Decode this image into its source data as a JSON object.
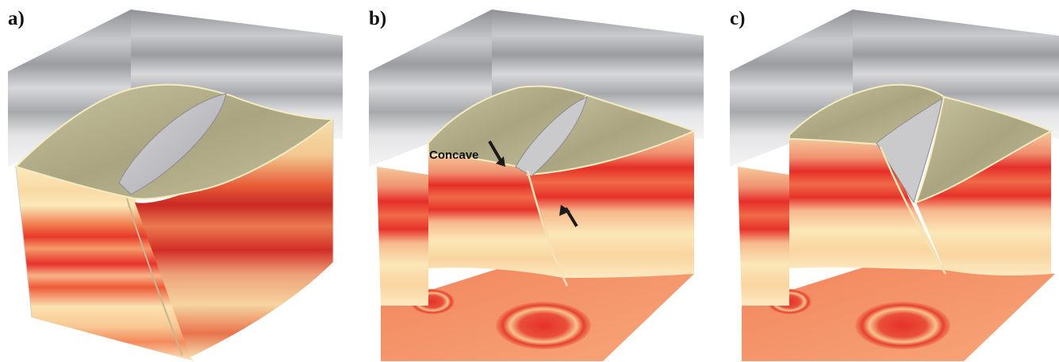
{
  "panels": [
    {
      "label": "a)"
    },
    {
      "label": "b)",
      "annotation": "Concave"
    },
    {
      "label": "c)"
    }
  ],
  "colors": {
    "seismic_gray_dark": "#8a8c90",
    "seismic_gray_light": "#e8e8ea",
    "horizon_surface": "#b9b48f",
    "layer_red": "#e8302a",
    "layer_orange": "#f07a4c",
    "layer_cream": "#fbe6b6",
    "fault_surface": "#c9c9cc",
    "arrow": "#1a1a1a"
  }
}
